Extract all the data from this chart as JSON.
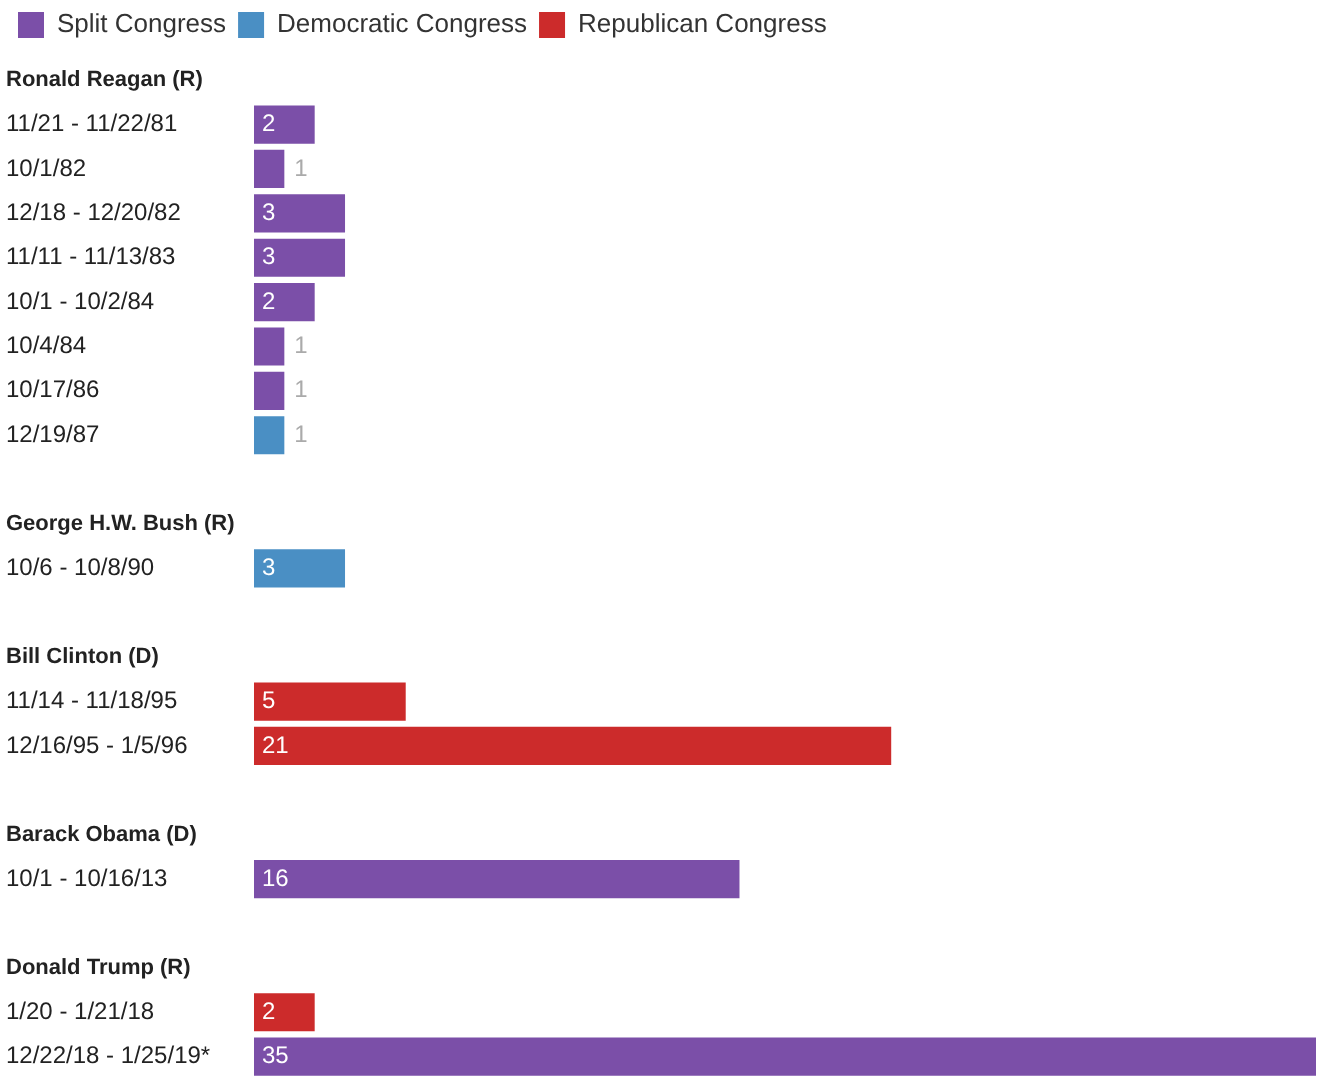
{
  "chart_data": {
    "type": "bar",
    "orientation": "horizontal",
    "legend": "top left",
    "tick_labels": "y",
    "grid": false,
    "data_labels": true,
    "xlim": [
      0,
      35
    ],
    "categories": [
      "Ronald Reagan (R)",
      "11/21 - 11/22/81",
      "10/1/82",
      "12/18 - 12/20/82",
      "11/11 - 11/13/83",
      "10/1 - 10/2/84",
      "10/4/84",
      "10/17/86",
      "12/19/87",
      null,
      "George H.W. Bush (R)",
      "10/6 - 10/8/90",
      null,
      "Bill Clinton (D)",
      "11/14 - 11/18/95",
      "12/16/95 - 1/5/96",
      null,
      "Barack Obama (D)",
      "10/1 - 10/16/13",
      null,
      "Donald Trump (R)",
      "1/20 - 1/21/18",
      "12/22/18 - 1/25/19*"
    ],
    "series": [
      {
        "name": "Split Congress",
        "color": "#7b4fa8",
        "values": [
          null,
          2,
          1,
          3,
          3,
          2,
          1,
          1,
          null,
          null,
          null,
          null,
          null,
          null,
          null,
          null,
          null,
          null,
          16,
          null,
          null,
          null,
          35
        ]
      },
      {
        "name": "Democratic Congress",
        "color": "#4a8fc4",
        "values": [
          null,
          null,
          null,
          null,
          null,
          null,
          null,
          null,
          1,
          null,
          null,
          3,
          null,
          null,
          null,
          null,
          null,
          null,
          null,
          null,
          null,
          null,
          null
        ]
      },
      {
        "name": "Republican Congress",
        "color": "#cc2b2b",
        "values": [
          null,
          null,
          null,
          null,
          null,
          null,
          null,
          null,
          null,
          null,
          null,
          null,
          null,
          null,
          5,
          21,
          null,
          null,
          null,
          null,
          null,
          2,
          null
        ]
      }
    ]
  }
}
